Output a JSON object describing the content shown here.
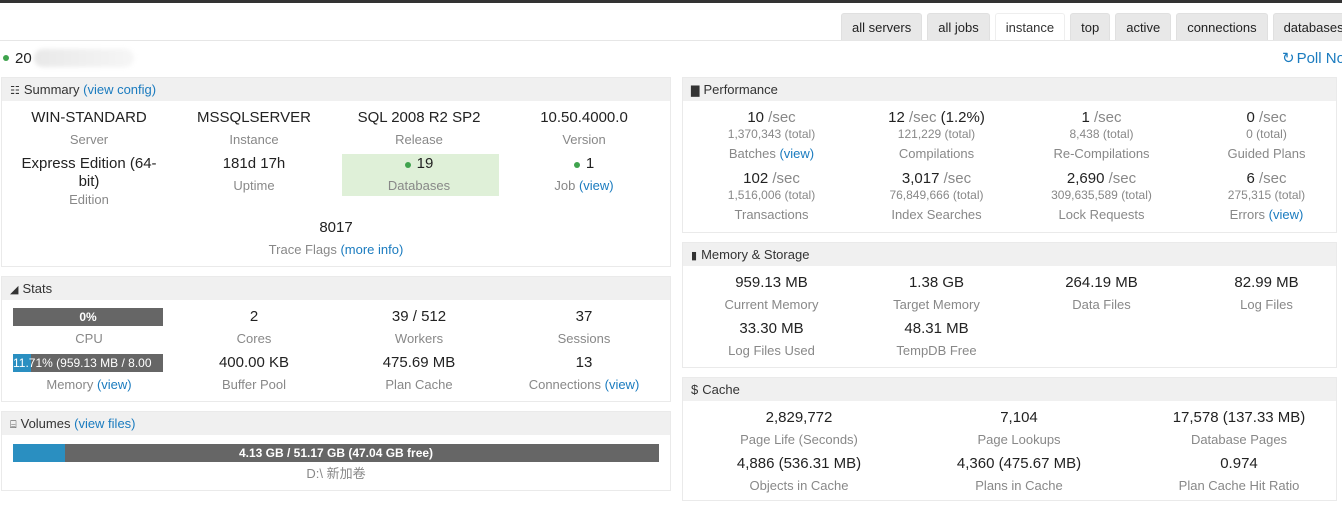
{
  "tabs": [
    "all servers",
    "all jobs",
    "instance",
    "top",
    "active",
    "connections",
    "databases"
  ],
  "active_tab": "instance",
  "header": {
    "server_prefix": "20",
    "poll_label": "Poll No"
  },
  "summary": {
    "title": "Summary",
    "link": "(view config)",
    "server": {
      "value": "WIN-STANDARD",
      "label": "Server"
    },
    "instance": {
      "value": "MSSQLSERVER",
      "label": "Instance"
    },
    "release": {
      "value": "SQL 2008 R2 SP2",
      "label": "Release"
    },
    "version": {
      "value": "10.50.4000.0",
      "label": "Version"
    },
    "edition": {
      "value_line1": "Express Edition (64-",
      "value_line2": "bit)",
      "label": "Edition"
    },
    "uptime": {
      "value": "181d 17h",
      "label": "Uptime"
    },
    "databases": {
      "value": "19",
      "label": "Databases"
    },
    "job": {
      "value": "1",
      "label": "Job",
      "link": "(view)"
    },
    "trace_flags": {
      "value": "8017",
      "label": "Trace Flags",
      "link": "(more info)"
    }
  },
  "stats": {
    "title": "Stats",
    "cpu": {
      "bar_text": "0%",
      "fraction": 0.0,
      "label": "CPU"
    },
    "cores": {
      "value": "2",
      "label": "Cores"
    },
    "workers": {
      "value": "39 / 512",
      "label": "Workers"
    },
    "sessions": {
      "value": "37",
      "label": "Sessions"
    },
    "memory": {
      "bar_text": "11.71% (959.13 MB / 8.00",
      "fraction": 0.1171,
      "label": "Memory",
      "link": "(view)"
    },
    "buffer_pool": {
      "value": "400.00 KB",
      "label": "Buffer Pool"
    },
    "plan_cache": {
      "value": "475.69 MB",
      "label": "Plan Cache"
    },
    "connections": {
      "value": "13",
      "label": "Connections",
      "link": "(view)"
    }
  },
  "volumes": {
    "title": "Volumes",
    "link": "(view files)",
    "bar_text": "4.13 GB / 51.17 GB (47.04 GB free)",
    "fraction": 0.0807,
    "drive": "D:\\ 新加卷"
  },
  "performance": {
    "title": "Performance",
    "unit": "/sec",
    "batches": {
      "rate": "10",
      "total": "1,370,343 (total)",
      "label": "Batches",
      "link": "(view)"
    },
    "compilations": {
      "rate": "12",
      "extra": "(1.2%)",
      "total": "121,229 (total)",
      "label": "Compilations"
    },
    "recompilations": {
      "rate": "1",
      "total": "8,438 (total)",
      "label": "Re-Compilations"
    },
    "guided": {
      "rate": "0",
      "total": "0 (total)",
      "label": "Guided Plans"
    },
    "transactions": {
      "rate": "102",
      "total": "1,516,006 (total)",
      "label": "Transactions"
    },
    "index_searches": {
      "rate": "3,017",
      "total": "76,849,666 (total)",
      "label": "Index Searches"
    },
    "lock_requests": {
      "rate": "2,690",
      "total": "309,635,589 (total)",
      "label": "Lock Requests"
    },
    "errors": {
      "rate": "6",
      "total": "275,315 (total)",
      "label": "Errors",
      "link": "(view)"
    }
  },
  "memory_storage": {
    "title": "Memory & Storage",
    "current_memory": {
      "value": "959.13 MB",
      "label": "Current Memory"
    },
    "target_memory": {
      "value": "1.38 GB",
      "label": "Target Memory"
    },
    "data_files": {
      "value": "264.19 MB",
      "label": "Data Files"
    },
    "log_files": {
      "value": "82.99 MB",
      "label": "Log Files"
    },
    "log_files_used": {
      "value": "33.30 MB",
      "label": "Log Files Used"
    },
    "tempdb_free": {
      "value": "48.31 MB",
      "label": "TempDB Free"
    }
  },
  "cache": {
    "title": "Cache",
    "page_life": {
      "value": "2,829,772",
      "label": "Page Life (Seconds)"
    },
    "page_lookups": {
      "value": "7,104",
      "label": "Page Lookups"
    },
    "database_pages": {
      "value": "17,578 (137.33 MB)",
      "label": "Database Pages"
    },
    "objects": {
      "value": "4,886 (536.31 MB)",
      "label": "Objects in Cache"
    },
    "plans": {
      "value": "4,360 (475.67 MB)",
      "label": "Plans in Cache"
    },
    "hit_ratio": {
      "value": "0.974",
      "label": "Plan Cache Hit Ratio"
    }
  },
  "colors": {
    "accent": "#1a7bbf",
    "status_green": "#3fa34d",
    "bar_bg": "#666666",
    "bar_fill": "#2a8fc1",
    "db_highlight": "#dff0d8"
  },
  "icons": [
    "summary-icon",
    "stats-icon",
    "volumes-icon",
    "performance-icon",
    "memory-icon",
    "refresh-icon"
  ]
}
